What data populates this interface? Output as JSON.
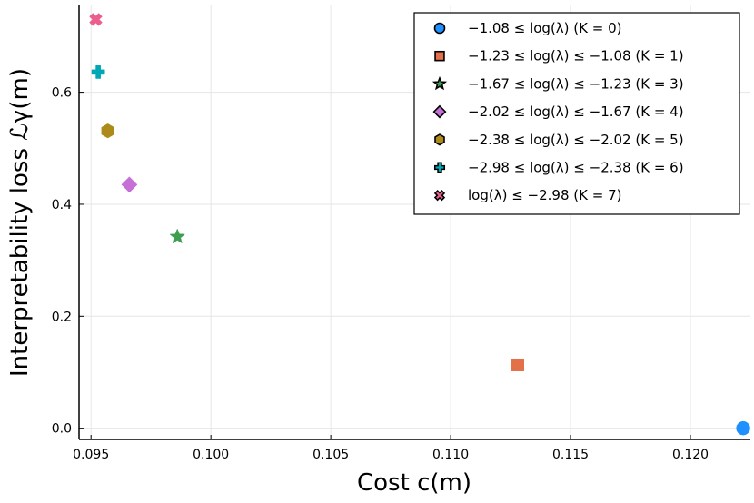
{
  "chart_data": {
    "type": "scatter",
    "xlabel": "Cost c(m)",
    "ylabel": "Interpretability loss ℒγ(m)",
    "xlim": [
      0.0945,
      0.1225
    ],
    "ylim": [
      -0.02,
      0.755
    ],
    "xticks": [
      0.095,
      0.1,
      0.105,
      0.11,
      0.115,
      0.12
    ],
    "xtick_labels": [
      "0.095",
      "0.100",
      "0.105",
      "0.110",
      "0.115",
      "0.120"
    ],
    "yticks": [
      0.0,
      0.2,
      0.4,
      0.6
    ],
    "ytick_labels": [
      "0.0",
      "0.2",
      "0.4",
      "0.6"
    ],
    "grid": true,
    "legend_position": "top-right",
    "series": [
      {
        "name": "−1.08 ≤ log(λ) (K = 0)",
        "marker": "circle",
        "color": "#1e90ff",
        "x": [
          0.1222
        ],
        "y": [
          0.0
        ]
      },
      {
        "name": "−1.23 ≤ log(λ) ≤ −1.08 (K = 1)",
        "marker": "square",
        "color": "#e2714a",
        "x": [
          0.1128
        ],
        "y": [
          0.113
        ]
      },
      {
        "name": "−1.67 ≤ log(λ) ≤ −1.23 (K = 3)",
        "marker": "star",
        "color": "#3e9e4f",
        "x": [
          0.0986
        ],
        "y": [
          0.342
        ]
      },
      {
        "name": "−2.02 ≤ log(λ) ≤ −1.67 (K = 4)",
        "marker": "diamond",
        "color": "#c66fd6",
        "x": [
          0.0966
        ],
        "y": [
          0.435
        ]
      },
      {
        "name": "−2.38 ≤ log(λ) ≤ −2.02 (K = 5)",
        "marker": "hexagon",
        "color": "#ad8b1a",
        "x": [
          0.0957
        ],
        "y": [
          0.531
        ]
      },
      {
        "name": "−2.98 ≤ log(λ) ≤ −2.38 (K = 6)",
        "marker": "cross",
        "color": "#00a8b5",
        "x": [
          0.0953
        ],
        "y": [
          0.636
        ]
      },
      {
        "name": "log(λ) ≤ −2.98 (K = 7)",
        "marker": "xcross",
        "color": "#ea5f8c",
        "x": [
          0.0952
        ],
        "y": [
          0.73
        ]
      }
    ]
  }
}
